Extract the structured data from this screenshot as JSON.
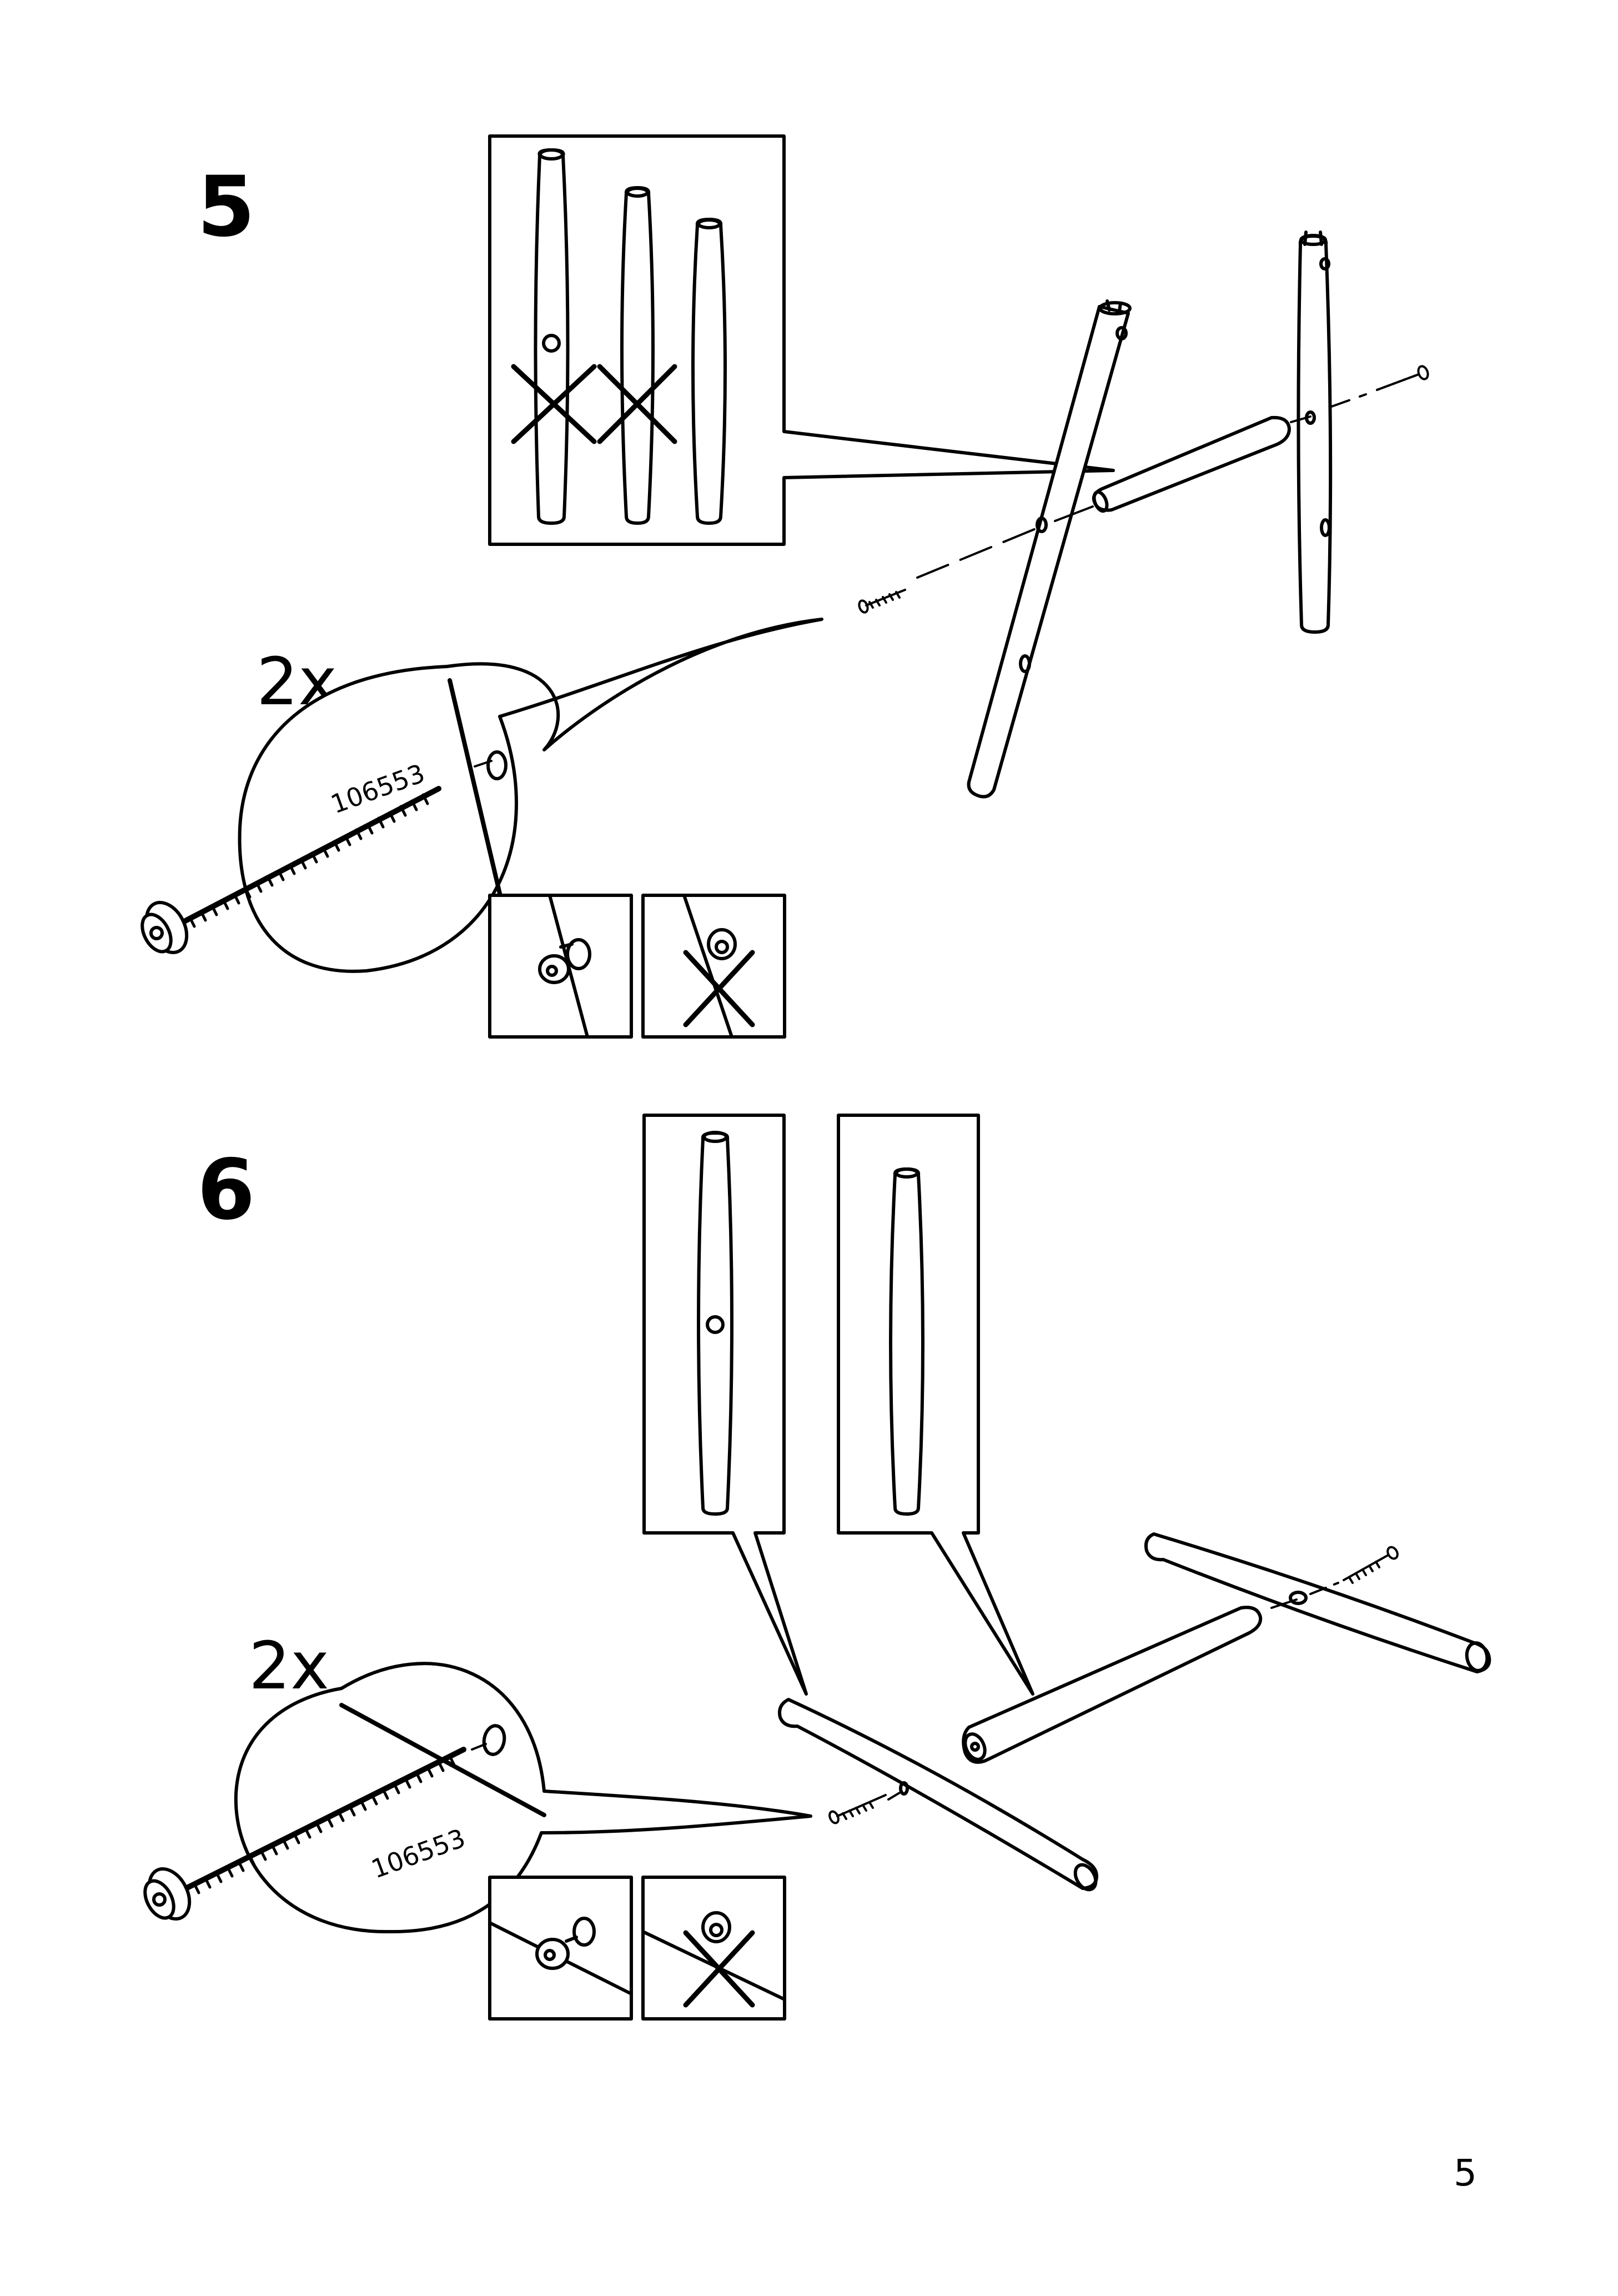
{
  "page": {
    "number": "5"
  },
  "steps": [
    {
      "number": "5",
      "quantity": "2x",
      "part_number": "106553",
      "callout": {
        "options": [
          {
            "state": "not-this"
          },
          {
            "state": "not-this"
          },
          {
            "state": "correct"
          }
        ]
      },
      "detail": {
        "correct": "flush",
        "incorrect": "protruding"
      }
    },
    {
      "number": "6",
      "quantity": "2x",
      "part_number": "106553",
      "callouts": [
        {
          "state": "with-hole"
        },
        {
          "state": "no-hole"
        }
      ],
      "detail": {
        "correct": "flush",
        "incorrect": "protruding"
      }
    }
  ],
  "icons": {
    "screw": "screw-icon",
    "cross": "cross-mark-icon",
    "rod": "rod-icon"
  },
  "colors": {
    "ink": "#000000",
    "paper": "#ffffff"
  }
}
